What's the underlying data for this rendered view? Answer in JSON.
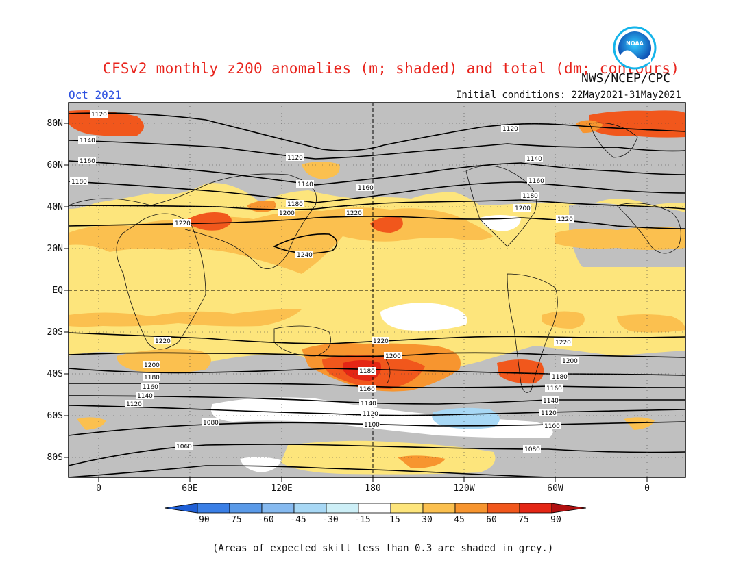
{
  "title": "CFSv2 monthly z200 anomalies (m; shaded) and total (dm; contours)",
  "agency": "NWS/NCEP/CPC",
  "month": "Oct 2021",
  "initial_conditions": "Initial conditions: 22May2021-31May2021",
  "latitude_labels": [
    "80N",
    "60N",
    "40N",
    "20N",
    "EQ",
    "20S",
    "40S",
    "60S",
    "80S"
  ],
  "longitude_labels": [
    "0",
    "60E",
    "120E",
    "180",
    "120W",
    "60W",
    "0"
  ],
  "colorbar": {
    "labels": [
      "-90",
      "-75",
      "-60",
      "-45",
      "-30",
      "-15",
      "15",
      "30",
      "45",
      "60",
      "75",
      "90"
    ],
    "colors": [
      "#1f5fd6",
      "#3a7fe6",
      "#5a9ae8",
      "#86baf0",
      "#a8d8f5",
      "#cdeff7",
      "#ffffff",
      "#fde57c",
      "#fbc04f",
      "#f7952f",
      "#f1571c",
      "#e42615",
      "#b01010"
    ]
  },
  "contour_labels": [
    "1120",
    "1140",
    "1160",
    "1180",
    "1200",
    "1220",
    "1240",
    "1100",
    "1080",
    "1060"
  ],
  "footnote": "(Areas of expected skill less than 0.3 are shaded in grey.)",
  "colors": {
    "title": "#e8231c",
    "month": "#2b4fe0",
    "skill_mask": "#c0c0c0"
  }
}
